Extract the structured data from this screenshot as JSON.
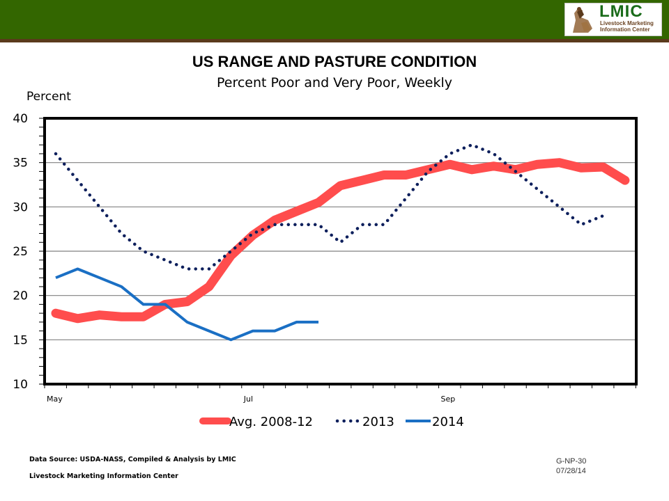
{
  "header": {
    "logo": {
      "title": "LMIC",
      "subtitle_line1": "Livestock Marketing",
      "subtitle_line2": "Information Center",
      "icon": "cowboy-horse-icon"
    },
    "colors": {
      "bar": "#336600",
      "stripe": "#5a3a1c"
    }
  },
  "chart_data": {
    "type": "line",
    "title": "US RANGE AND PASTURE CONDITION",
    "subtitle": "Percent Poor and Very Poor, Weekly",
    "ylabel": "Percent",
    "xlabel": "",
    "ylim": [
      10,
      40
    ],
    "yticks": [
      "10",
      "15",
      "20",
      "25",
      "30",
      "35",
      "40"
    ],
    "ytick_values": [
      10,
      15,
      20,
      25,
      30,
      35,
      40
    ],
    "x_month_labels": [
      {
        "label": "May",
        "week_index": 0
      },
      {
        "label": "Jul",
        "week_index": 9
      },
      {
        "label": "Sep",
        "week_index": 18
      }
    ],
    "num_weeks": 27,
    "grid": "horizontal",
    "legend_position": "bottom",
    "series": [
      {
        "name": "Avg. 2008-12",
        "style": "thick-solid",
        "color": "#ff4d4d",
        "values": [
          18,
          17.4,
          17.8,
          17.6,
          17.6,
          19,
          19.3,
          21,
          24.5,
          26.8,
          28.5,
          29.5,
          30.5,
          32.4,
          33,
          33.6,
          33.6,
          34.2,
          34.8,
          34.2,
          34.6,
          34.2,
          34.8,
          35,
          34.4,
          34.5,
          33
        ]
      },
      {
        "name": "2013",
        "style": "dotted",
        "color": "#0d1f5c",
        "values": [
          36,
          33,
          30,
          27,
          25,
          24,
          23,
          23,
          25,
          27,
          28,
          28,
          28,
          26,
          28,
          28,
          31,
          34,
          36,
          37,
          36,
          34,
          32,
          30,
          28,
          29
        ]
      },
      {
        "name": "2014",
        "style": "solid",
        "color": "#1a6fc4",
        "values": [
          22,
          23,
          22,
          21,
          19,
          19,
          17,
          16,
          15,
          16,
          16,
          17,
          17
        ]
      }
    ]
  },
  "footer": {
    "source": "Data Source:  USDA-NASS, Compiled & Analysis  by LMIC",
    "org": "Livestock Marketing Information Center",
    "chart_code": "G-NP-30",
    "date": "07/28/14"
  }
}
